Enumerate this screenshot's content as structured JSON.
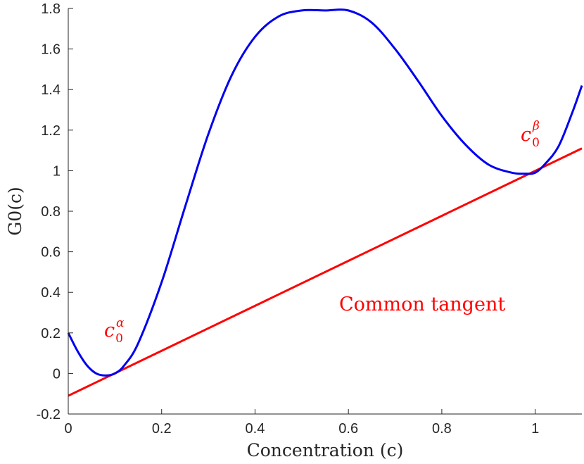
{
  "chart_data": {
    "type": "line",
    "title": "",
    "xlabel": "Concentration (c)",
    "ylabel": "G0(c)",
    "xlim": [
      0,
      1.1
    ],
    "ylim": [
      -0.2,
      1.8
    ],
    "grid": false,
    "x_ticks": [
      0,
      0.2,
      0.4,
      0.6,
      0.8,
      1
    ],
    "x_tick_labels": [
      "0",
      "0.2",
      "0.4",
      "0.6",
      "0.8",
      "1"
    ],
    "y_ticks": [
      -0.2,
      0,
      0.2,
      0.4,
      0.6,
      0.8,
      1,
      1.2,
      1.4,
      1.6,
      1.8
    ],
    "y_tick_labels": [
      "-0.2",
      "0",
      "0.2",
      "0.4",
      "0.6",
      "0.8",
      "1",
      "1.2",
      "1.4",
      "1.6",
      "1.8"
    ],
    "series": [
      {
        "color": "#0000ee",
        "x": [
          0,
          0.02,
          0.04,
          0.06,
          0.08,
          0.1,
          0.12,
          0.15,
          0.2,
          0.25,
          0.3,
          0.35,
          0.4,
          0.45,
          0.5,
          0.55,
          0.6,
          0.65,
          0.7,
          0.75,
          0.8,
          0.85,
          0.9,
          0.95,
          0.98,
          1.0,
          1.02,
          1.05,
          1.08,
          1.1
        ],
        "y": [
          0.2,
          0.11,
          0.04,
          0.0,
          -0.01,
          0.0,
          0.04,
          0.15,
          0.45,
          0.82,
          1.18,
          1.47,
          1.66,
          1.76,
          1.79,
          1.79,
          1.79,
          1.73,
          1.6,
          1.44,
          1.27,
          1.13,
          1.03,
          0.99,
          0.985,
          0.99,
          1.03,
          1.12,
          1.29,
          1.42
        ]
      },
      {
        "color": "#ff0000",
        "x": [
          0,
          1.1
        ],
        "y": [
          -0.11,
          1.11
        ]
      }
    ],
    "annotations": [
      {
        "text": "Common tangent",
        "x": 0.58,
        "y": 0.33
      },
      {
        "base": "c",
        "sub": "0",
        "sup": "α",
        "x": 0.09,
        "y": 0.19
      },
      {
        "base": "c",
        "sub": "0",
        "sup": "β",
        "x": 0.97,
        "y": 1.14
      }
    ]
  }
}
